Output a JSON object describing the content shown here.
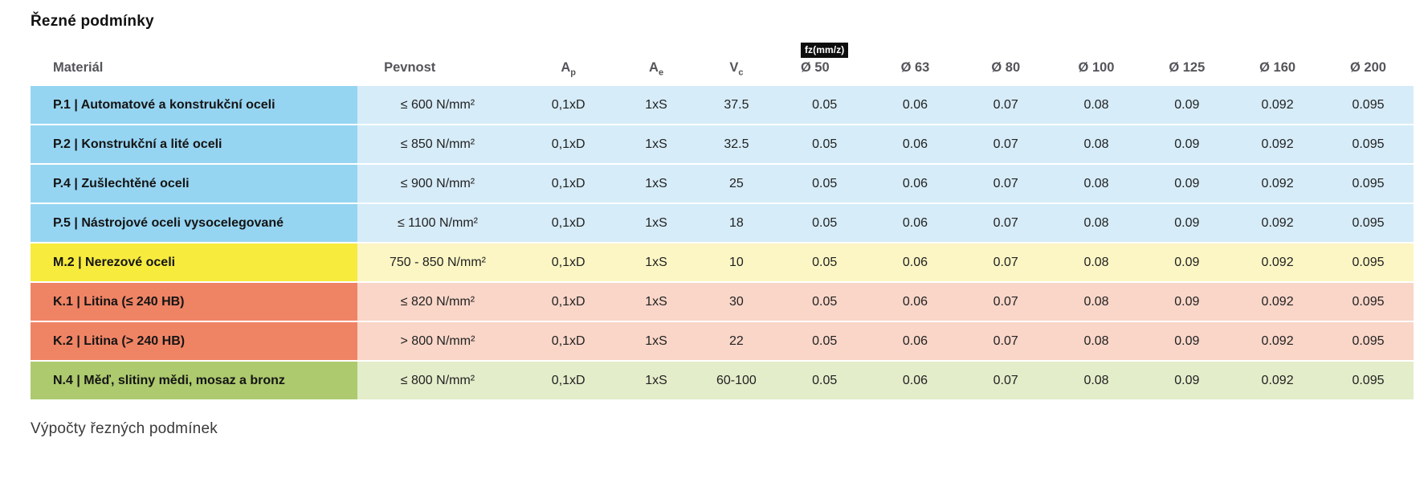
{
  "page": {
    "title": "Řezné podmínky",
    "footer": "Výpočty řezných podmínek"
  },
  "table": {
    "headers": {
      "material": "Materiál",
      "pevnost": "Pevnost",
      "ap_base": "A",
      "ap_sub": "p",
      "ae_base": "A",
      "ae_sub": "e",
      "vc_base": "V",
      "vc_sub": "c",
      "fz_badge": "fz(mm/z)",
      "diameters": [
        "Ø 50",
        "Ø 63",
        "Ø 80",
        "Ø 100",
        "Ø 125",
        "Ø 160",
        "Ø 200"
      ]
    },
    "colors": {
      "steel": {
        "label": "#96d5f2",
        "cells": "#d6ecf8"
      },
      "stainless": {
        "label": "#f7eb3e",
        "cells": "#fcf6c4"
      },
      "cast_iron": {
        "label": "#ef8465",
        "cells": "#f9d6c8"
      },
      "nonferrous": {
        "label": "#adca6e",
        "cells": "#e3edca"
      }
    },
    "rows": [
      {
        "group": "steel",
        "material": "P.1 | Automatové a konstrukční oceli",
        "pevnost": "≤ 600 N/mm²",
        "ap": "0,1xD",
        "ae": "1xS",
        "vc": "37.5",
        "fz": [
          "0.05",
          "0.06",
          "0.07",
          "0.08",
          "0.09",
          "0.092",
          "0.095"
        ]
      },
      {
        "group": "steel",
        "material": "P.2 | Konstrukční a lité oceli",
        "pevnost": "≤ 850 N/mm²",
        "ap": "0,1xD",
        "ae": "1xS",
        "vc": "32.5",
        "fz": [
          "0.05",
          "0.06",
          "0.07",
          "0.08",
          "0.09",
          "0.092",
          "0.095"
        ]
      },
      {
        "group": "steel",
        "material": "P.4 | Zušlechtěné oceli",
        "pevnost": "≤ 900 N/mm²",
        "ap": "0,1xD",
        "ae": "1xS",
        "vc": "25",
        "fz": [
          "0.05",
          "0.06",
          "0.07",
          "0.08",
          "0.09",
          "0.092",
          "0.095"
        ]
      },
      {
        "group": "steel",
        "material": "P.5 | Nástrojové oceli vysocelegované",
        "pevnost": "≤ 1100 N/mm²",
        "ap": "0,1xD",
        "ae": "1xS",
        "vc": "18",
        "fz": [
          "0.05",
          "0.06",
          "0.07",
          "0.08",
          "0.09",
          "0.092",
          "0.095"
        ]
      },
      {
        "group": "stainless",
        "material": "M.2 | Nerezové oceli",
        "pevnost": "750 - 850 N/mm²",
        "ap": "0,1xD",
        "ae": "1xS",
        "vc": "10",
        "fz": [
          "0.05",
          "0.06",
          "0.07",
          "0.08",
          "0.09",
          "0.092",
          "0.095"
        ]
      },
      {
        "group": "cast_iron",
        "material": "K.1 | Litina (≤ 240 HB)",
        "pevnost": "≤ 820 N/mm²",
        "ap": "0,1xD",
        "ae": "1xS",
        "vc": "30",
        "fz": [
          "0.05",
          "0.06",
          "0.07",
          "0.08",
          "0.09",
          "0.092",
          "0.095"
        ]
      },
      {
        "group": "cast_iron",
        "material": "K.2 | Litina (> 240 HB)",
        "pevnost": "> 800 N/mm²",
        "ap": "0,1xD",
        "ae": "1xS",
        "vc": "22",
        "fz": [
          "0.05",
          "0.06",
          "0.07",
          "0.08",
          "0.09",
          "0.092",
          "0.095"
        ]
      },
      {
        "group": "nonferrous",
        "material": "N.4 | Měď, slitiny mědi, mosaz a bronz",
        "pevnost": "≤ 800 N/mm²",
        "ap": "0,1xD",
        "ae": "1xS",
        "vc": "60-100",
        "fz": [
          "0.05",
          "0.06",
          "0.07",
          "0.08",
          "0.09",
          "0.092",
          "0.095"
        ]
      }
    ]
  }
}
